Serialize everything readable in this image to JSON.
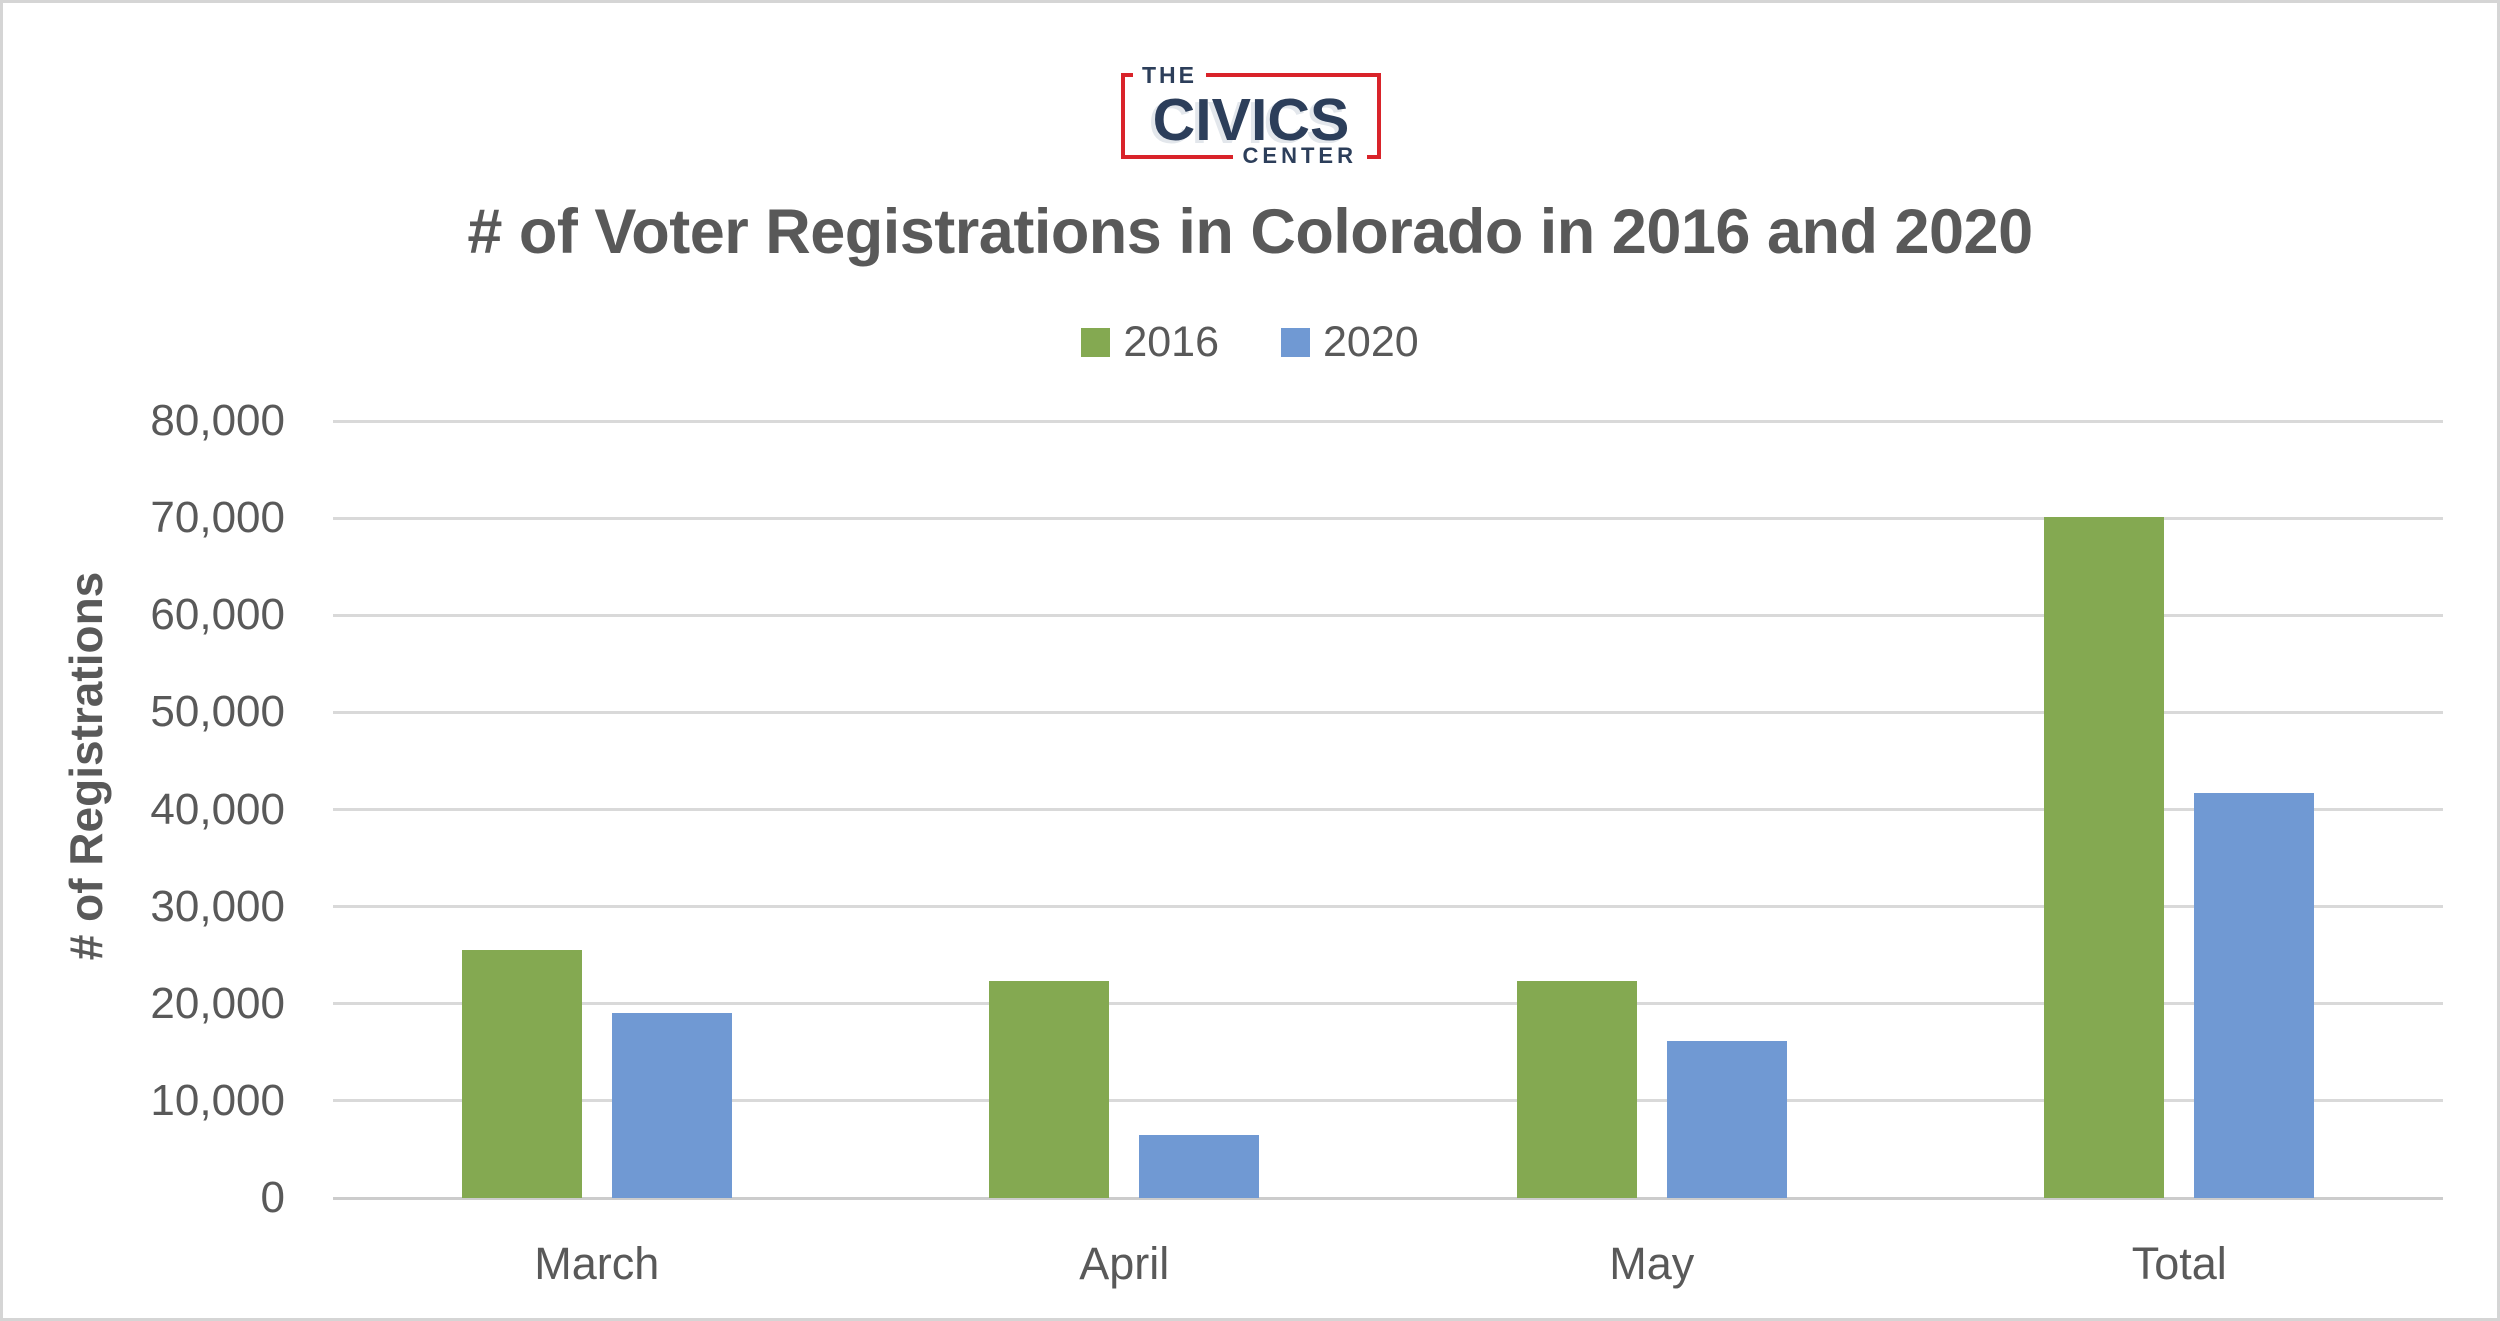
{
  "logo": {
    "line1": "THE",
    "line2": "CIVICS",
    "line3": "CENTER",
    "navy": "#2c3e5a",
    "red": "#d9232a"
  },
  "title": "# of Voter Registrations in Colorado in 2016 and 2020",
  "chart_data": {
    "type": "bar",
    "categories": [
      "March",
      "April",
      "May",
      "Total"
    ],
    "series": [
      {
        "name": "2016",
        "color": "#84a951",
        "values": [
          25500,
          22300,
          22300,
          70100
        ]
      },
      {
        "name": "2020",
        "color": "#7099d3",
        "values": [
          19000,
          6500,
          16200,
          41700
        ]
      }
    ],
    "xlabel": "",
    "ylabel": "# of Registrations",
    "ylim": [
      0,
      80000
    ],
    "ytick_step": 10000,
    "ytick_labels": [
      "0",
      "10,000",
      "20,000",
      "30,000",
      "40,000",
      "50,000",
      "60,000",
      "70,000",
      "80,000"
    ],
    "grid": true,
    "legend_position": "top",
    "text_color": "#595959",
    "gridline_color": "#d9d9d9"
  }
}
